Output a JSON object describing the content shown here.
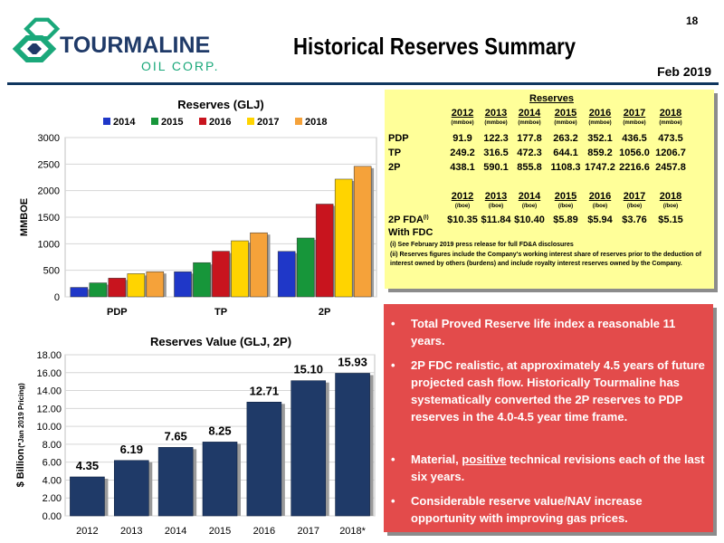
{
  "page_number": "18",
  "company": {
    "name_line1": "TOURMALINE",
    "name_line2": "OIL CORP."
  },
  "slide_title": "Historical Reserves Summary",
  "date_label": "Feb 2019",
  "colors": {
    "navy": "#1f3a68",
    "bar_2014": "#1f37c8",
    "bar_2015": "#17963a",
    "bar_2016": "#c8141e",
    "bar_2017": "#ffd400",
    "bar_2018": "#f5a23a",
    "table_bg": "#ffff99",
    "bullet_bg": "#e34b4b"
  },
  "chart_data": [
    {
      "type": "bar",
      "title": "Reserves (GLJ)",
      "ylabel": "MMBOE",
      "categories": [
        "PDP",
        "TP",
        "2P"
      ],
      "ylim": [
        0,
        3000
      ],
      "yticks": [
        "0",
        "500",
        "1000",
        "1500",
        "2000",
        "2500",
        "3000"
      ],
      "legend_position": "top",
      "series": [
        {
          "name": "2014",
          "values": [
            177.8,
            472.3,
            855.8
          ]
        },
        {
          "name": "2015",
          "values": [
            263.2,
            644.1,
            1108.3
          ]
        },
        {
          "name": "2016",
          "values": [
            352.1,
            859.2,
            1747.2
          ]
        },
        {
          "name": "2017",
          "values": [
            436.5,
            1056.0,
            2216.6
          ]
        },
        {
          "name": "2018",
          "values": [
            473.5,
            1206.7,
            2457.8
          ]
        }
      ]
    },
    {
      "type": "bar",
      "title": "Reserves Value (GLJ, 2P)",
      "ylabel": "$ Billion",
      "ylabel_note": "(*Jan 2019 Pricing)",
      "categories": [
        "2012",
        "2013",
        "2014",
        "2015",
        "2016",
        "2017",
        "2018*"
      ],
      "values": [
        4.35,
        6.19,
        7.65,
        8.25,
        12.71,
        15.1,
        15.93
      ],
      "labels": [
        "4.35",
        "6.19",
        "7.65",
        "8.25",
        "12.71",
        "15.10",
        "15.93"
      ],
      "ylim": [
        0,
        18
      ],
      "yticks": [
        "0.00",
        "2.00",
        "4.00",
        "6.00",
        "8.00",
        "10.00",
        "12.00",
        "14.00",
        "16.00",
        "18.00"
      ]
    }
  ],
  "reserves_table": {
    "heading": "Reserves",
    "years": [
      "2012",
      "2013",
      "2014",
      "2015",
      "2016",
      "2017",
      "2018"
    ],
    "unit_mmboe": "(mmboe)",
    "rows": [
      {
        "label": "PDP",
        "values": [
          "91.9",
          "122.3",
          "177.8",
          "263.2",
          "352.1",
          "436.5",
          "473.5"
        ]
      },
      {
        "label": "TP",
        "values": [
          "249.2",
          "316.5",
          "472.3",
          "644.1",
          "859.2",
          "1056.0",
          "1206.7"
        ]
      },
      {
        "label": "2P",
        "values": [
          "438.1",
          "590.1",
          "855.8",
          "1108.3",
          "1747.2",
          "2216.6",
          "2457.8"
        ]
      }
    ],
    "unit_boe": "(/boe)",
    "fda_label": "2P FDA",
    "fda_sup": "(i)",
    "fda_sub": "With FDC",
    "fda_values": [
      "$10.35",
      "$11.84",
      "$10.40",
      "$5.89",
      "$5.94",
      "$3.76",
      "$5.15"
    ],
    "note1": "(i)   See February 2019 press release for full FD&A disclosures",
    "note2": "(ii)  Reserves figures include the Company's working interest share of reserves prior to the deduction of interest owned by others (burdens) and include royalty interest reserves owned by the Company."
  },
  "bullets": [
    {
      "text": "Total Proved Reserve life index a reasonable 11 years."
    },
    {
      "text": "2P FDC realistic, at approximately 4.5 years of future projected cash flow.  Historically Tourmaline has systematically converted the 2P reserves to PDP reserves in the 4.0-4.5 year time frame."
    },
    {
      "pre": "Material, ",
      "em": "positive",
      "post": " technical revisions each of the last six years."
    },
    {
      "text": "Considerable reserve value/NAV increase opportunity with improving gas prices."
    }
  ]
}
